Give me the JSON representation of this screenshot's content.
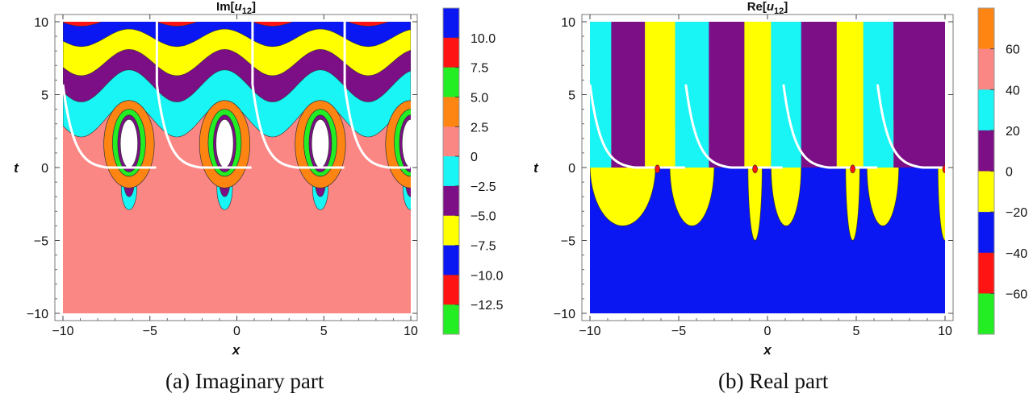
{
  "chart_data": [
    {
      "type": "heatmap",
      "subtype": "contour",
      "title": "Im[u₁₂]",
      "title_parts": {
        "prefix": "Im[",
        "var": "u",
        "sub": "12",
        "suffix": "]"
      },
      "xlabel": "x",
      "ylabel": "t",
      "xlim": [
        -10,
        10
      ],
      "ylim": [
        -10,
        10
      ],
      "xticks": [
        -10,
        -5,
        0,
        5,
        10
      ],
      "yticks": [
        -10,
        -5,
        0,
        5,
        10
      ],
      "caption": "(a)  Imaginary part",
      "colorbar": {
        "ticks": [
          "10.0",
          "7.5",
          "5.0",
          "2.5",
          "0",
          "−2.5",
          "−5.0",
          "−7.5",
          "−10.0",
          "−12.5"
        ],
        "colors": [
          "#0a17f2",
          "#ff1414",
          "#23ee23",
          "#ff8512",
          "#fb8785",
          "#19f4f4",
          "#7d0f86",
          "#ffff00",
          "#0a17f2",
          "#ff1414",
          "#23ee23"
        ]
      },
      "background_level": 0,
      "background_color": "#fb8785",
      "outline_color": "#ffffff",
      "features": {
        "period": 5.5,
        "lobe_centers_x": [
          -6.2,
          -0.7,
          4.8,
          10.0
        ],
        "lobe_peak_t": 4.6,
        "lobe_tail_t": -2.9,
        "wave_bands_t": [
          4.0,
          5.2,
          6.9,
          8.6,
          9.8
        ]
      }
    },
    {
      "type": "heatmap",
      "subtype": "contour",
      "title": "Re[u₁₂]",
      "title_parts": {
        "prefix": "Re[",
        "var": "u",
        "sub": "12",
        "suffix": "]"
      },
      "xlabel": "x",
      "ylabel": "t",
      "xlim": [
        -10,
        10
      ],
      "ylim": [
        -10,
        10
      ],
      "xticks": [
        -10,
        -5,
        0,
        5,
        10
      ],
      "yticks": [
        -10,
        -5,
        0,
        5,
        10
      ],
      "caption": "(b)  Real part",
      "colorbar": {
        "ticks": [
          "60",
          "40",
          "20",
          "0",
          "−20",
          "−40",
          "−60"
        ],
        "colors": [
          "#ff8512",
          "#fb8785",
          "#19f4f4",
          "#7d0f86",
          "#ffff00",
          "#0a17f2",
          "#ff1414",
          "#23ee23"
        ]
      },
      "background_level": -20,
      "background_color": "#0a17f2",
      "outline_color": "#ffffff",
      "features": {
        "stripe_period": 5.5,
        "lobe_centers_x": [
          -7.4,
          -0.7,
          4.8,
          10.0
        ],
        "lobe_bottom_t": -5.0,
        "upper_band_t": [
          0,
          10
        ]
      }
    }
  ]
}
